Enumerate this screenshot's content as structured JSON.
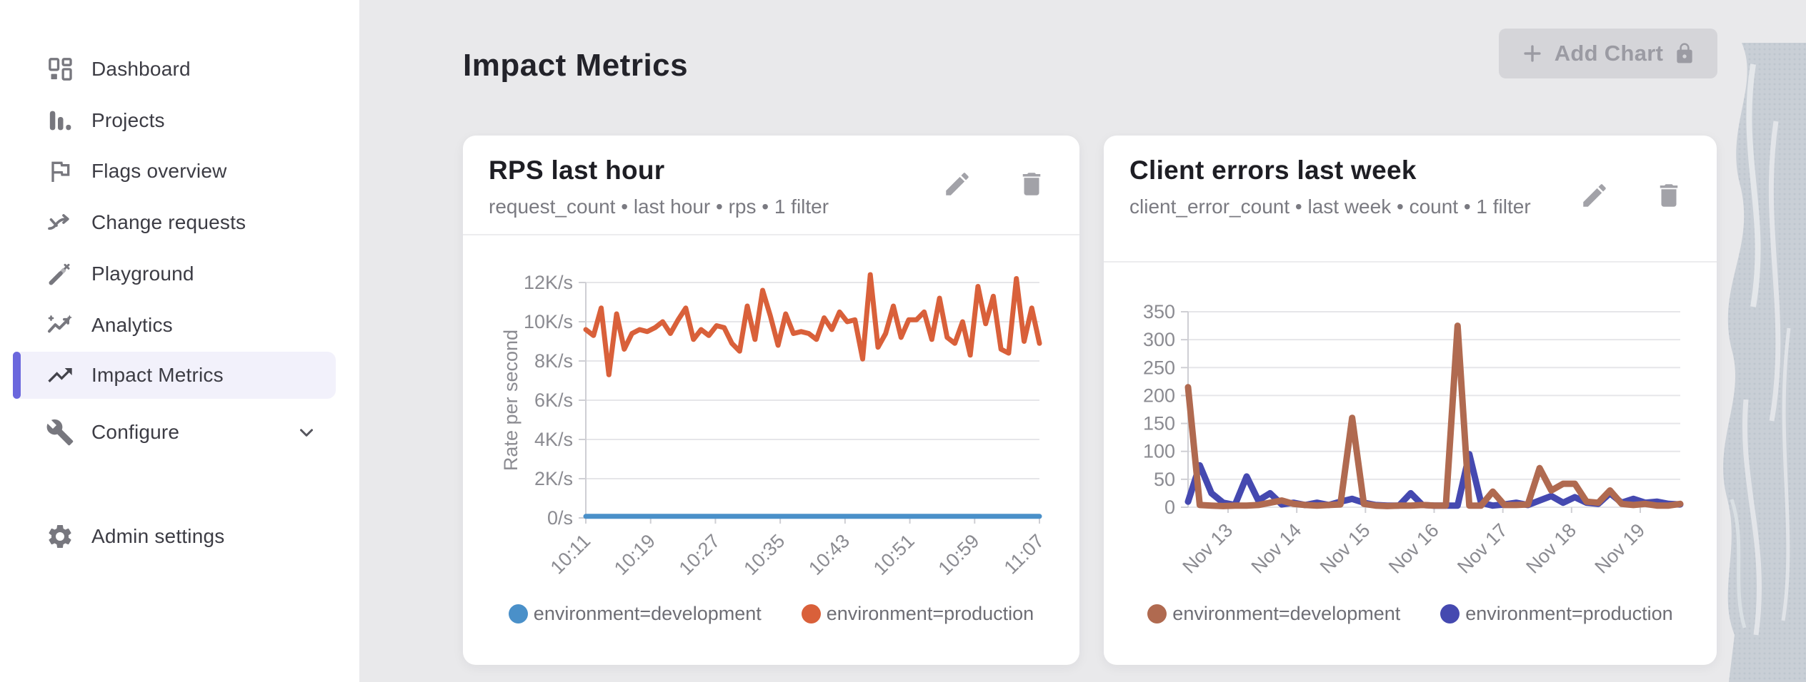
{
  "colors": {
    "accent_purple": "#6b67dd",
    "sidebar_selected_bg": "#f2f1fb",
    "main_background": "#e9e9eb",
    "card_background": "#ffffff",
    "disabled_button_bg": "#d5d5d9",
    "disabled_button_text": "#9b9ba3",
    "gridline": "#e6e6e9",
    "axis_text": "#8b8b91"
  },
  "sidebar": {
    "items": [
      {
        "label": "Dashboard"
      },
      {
        "label": "Projects"
      },
      {
        "label": "Flags overview"
      },
      {
        "label": "Change requests"
      },
      {
        "label": "Playground"
      },
      {
        "label": "Analytics"
      },
      {
        "label": "Impact Metrics",
        "selected": true
      },
      {
        "label": "Configure",
        "expandable": true
      },
      {
        "label": "Admin settings"
      }
    ]
  },
  "header": {
    "title": "Impact Metrics",
    "add_chart_button": {
      "label": "Add Chart",
      "disabled": true,
      "locked": true
    }
  },
  "cards": [
    {
      "title": "RPS last hour",
      "subtitle": "request_count • last hour • rps • 1 filter",
      "actions": [
        "edit",
        "delete"
      ]
    },
    {
      "title": "Client errors last week",
      "subtitle": "client_error_count • last week • count • 1 filter",
      "actions": [
        "edit",
        "delete"
      ]
    }
  ],
  "chart_data": [
    {
      "type": "line",
      "title": "RPS last hour",
      "xlabel": "",
      "ylabel": "Rate per second",
      "ylim": [
        0,
        12000
      ],
      "y_step": 2000,
      "y_ticks": [
        "12K/s",
        "10K/s",
        "8K/s",
        "6K/s",
        "4K/s",
        "2K/s",
        "0/s"
      ],
      "x_ticks": [
        "10:11",
        "10:19",
        "10:27",
        "10:35",
        "10:43",
        "10:51",
        "10:59",
        "11:07"
      ],
      "grid": "horizontal",
      "legend_position": "bottom",
      "series": [
        {
          "name": "environment=development",
          "color": "#4a90c9",
          "values": [
            80,
            80,
            80,
            80,
            80,
            80,
            80,
            80,
            80,
            80,
            80,
            80,
            80,
            80,
            80,
            80,
            80,
            80,
            80,
            80,
            80,
            80,
            80,
            80,
            80,
            80,
            80,
            80,
            80,
            80,
            80,
            80,
            80,
            80,
            80,
            80,
            80,
            80,
            80,
            80,
            80,
            80,
            80,
            80,
            80,
            80,
            80,
            80,
            80,
            80,
            80,
            80,
            80,
            80,
            80,
            80,
            80,
            80,
            80,
            80
          ]
        },
        {
          "name": "environment=production",
          "color": "#d9603a",
          "values": [
            9600,
            9300,
            10700,
            7300,
            10400,
            8600,
            9400,
            9600,
            9500,
            9700,
            10000,
            9400,
            10100,
            10700,
            9100,
            9600,
            9300,
            9800,
            9700,
            8900,
            8500,
            10800,
            9100,
            11600,
            10300,
            8800,
            10400,
            9400,
            9500,
            9400,
            9100,
            10200,
            9600,
            10500,
            10000,
            10100,
            8100,
            12400,
            8700,
            9400,
            10800,
            9200,
            10100,
            10100,
            10500,
            9100,
            11200,
            9200,
            8900,
            10000,
            8300,
            11800,
            9900,
            11300,
            8600,
            8400,
            12200,
            9000,
            10700,
            8900
          ]
        }
      ]
    },
    {
      "type": "line",
      "title": "Client errors last week",
      "xlabel": "",
      "ylabel": "",
      "ylim": [
        0,
        350
      ],
      "y_step": 50,
      "y_ticks": [
        "350",
        "300",
        "250",
        "200",
        "150",
        "100",
        "50",
        "0"
      ],
      "x_ticks": [
        "Nov 13",
        "Nov 14",
        "Nov 15",
        "Nov 16",
        "Nov 17",
        "Nov 18",
        "Nov 19"
      ],
      "grid": "horizontal",
      "legend_position": "bottom",
      "series": [
        {
          "name": "environment=development",
          "color": "#b06a50",
          "values": [
            215,
            4,
            3,
            2,
            3,
            3,
            4,
            8,
            12,
            6,
            4,
            3,
            4,
            5,
            160,
            6,
            3,
            2,
            3,
            3,
            4,
            3,
            3,
            325,
            3,
            3,
            28,
            4,
            4,
            5,
            70,
            30,
            42,
            42,
            10,
            8,
            30,
            6,
            4,
            6,
            3,
            3,
            6
          ]
        },
        {
          "name": "environment=production",
          "color": "#4549b0",
          "values": [
            10,
            75,
            25,
            8,
            4,
            55,
            12,
            25,
            5,
            8,
            4,
            8,
            4,
            10,
            15,
            8,
            4,
            3,
            3,
            25,
            4,
            3,
            3,
            3,
            95,
            8,
            3,
            5,
            8,
            4,
            12,
            20,
            8,
            18,
            8,
            6,
            25,
            8,
            15,
            8,
            10,
            6,
            5
          ]
        }
      ]
    }
  ]
}
